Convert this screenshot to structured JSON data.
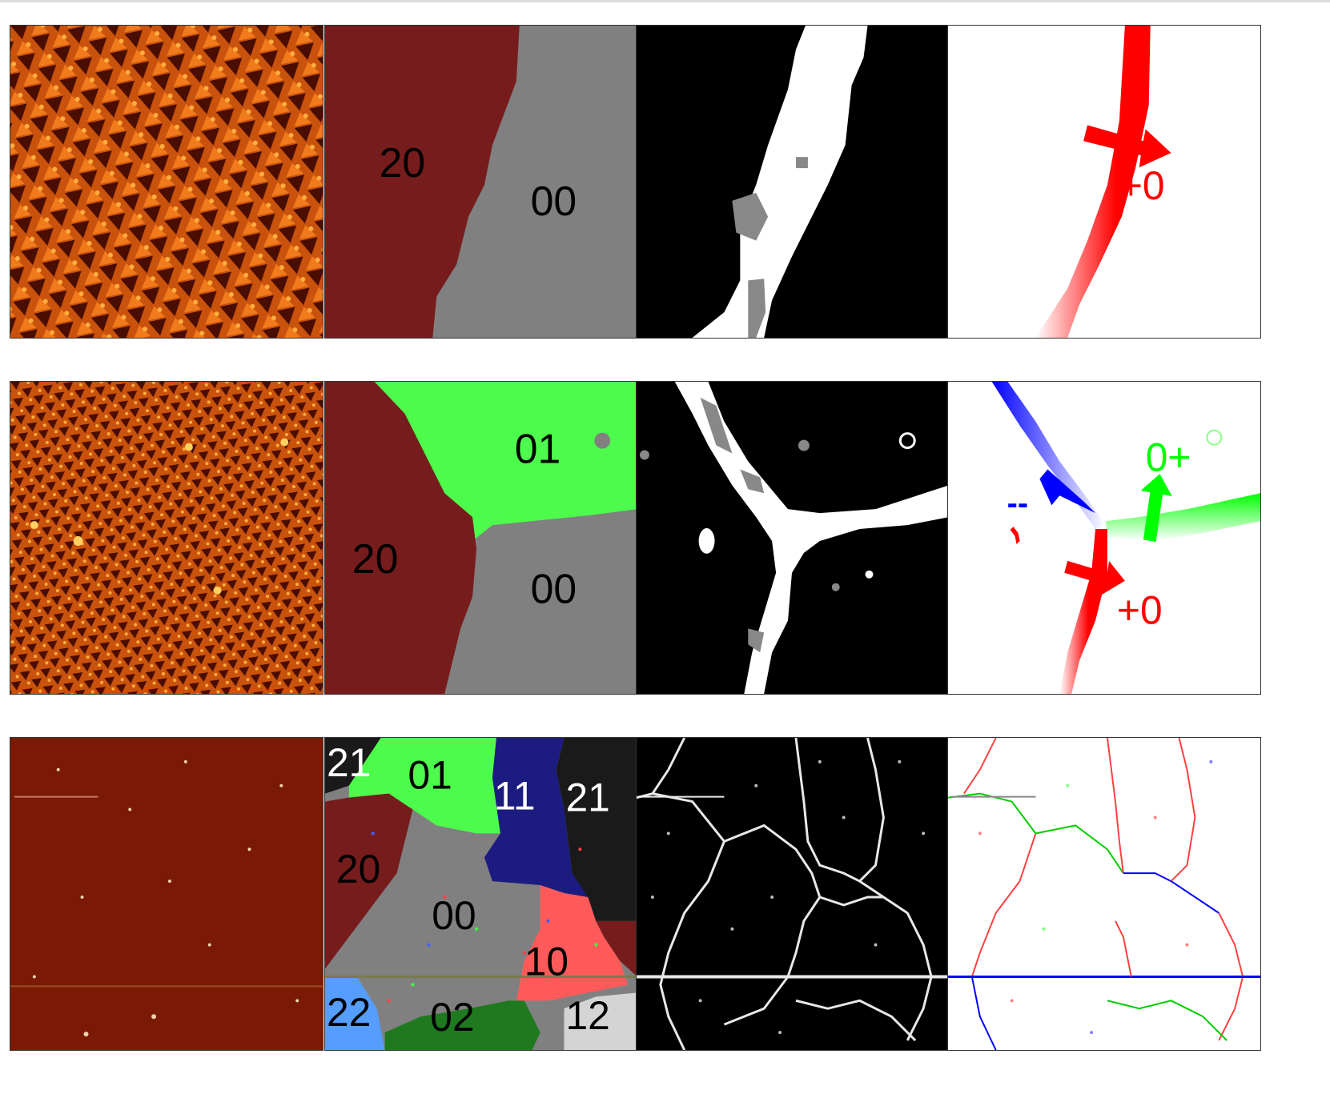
{
  "rows": [
    {
      "domain_labels": [
        "20",
        "00"
      ],
      "arrow_labels": [
        "+0"
      ]
    },
    {
      "domain_labels": [
        "01",
        "20",
        "00"
      ],
      "arrow_labels": [
        "--",
        "0+",
        "+0"
      ]
    },
    {
      "domain_labels": [
        "21",
        "01",
        "11",
        "21",
        "20",
        "00",
        "10",
        "22",
        "02",
        "12"
      ]
    }
  ],
  "colors": {
    "stm_orange": "#c8500a",
    "stm_dark": "#6e1a04",
    "domain_brown": "#761c1c",
    "domain_gray": "#808080",
    "domain_green": "#4dfb4d",
    "domain_navy": "#1c1c80",
    "domain_red": "#ff5a5a",
    "domain_blue": "#559dff",
    "domain_darkgreen": "#1f7a1f",
    "domain_lightgray": "#d4d4d4",
    "domain_black": "#1a1a1a",
    "wall_red": "#ff0000",
    "wall_blue": "#0000ff",
    "wall_green": "#00ff00"
  }
}
